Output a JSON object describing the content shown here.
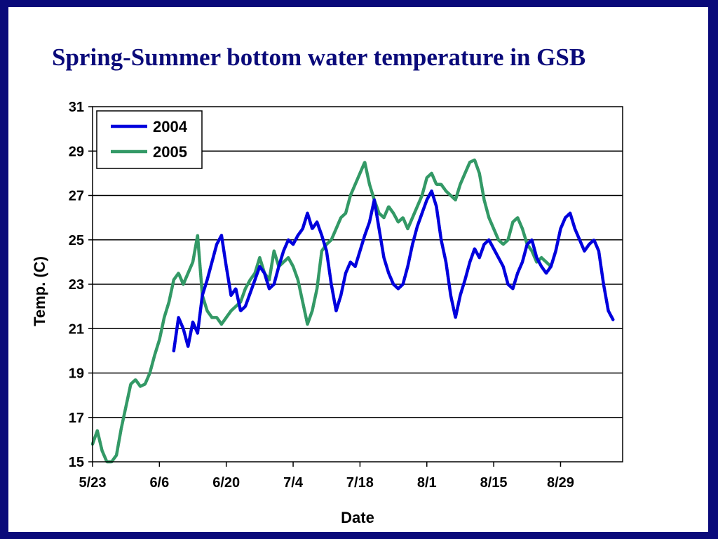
{
  "slide": {
    "title": "Spring-Summer bottom water temperature in GSB"
  },
  "chart_data": {
    "type": "line",
    "title": "Spring-Summer bottom water temperature in GSB",
    "xlabel": "Date",
    "ylabel": "Temp. (C)",
    "x_unit": "date (month/day)",
    "xlim": [
      "5/23",
      "9/11"
    ],
    "ylim": [
      15,
      31
    ],
    "yticks": [
      15,
      17,
      19,
      21,
      23,
      25,
      27,
      29,
      31
    ],
    "xticks": [
      "5/23",
      "6/6",
      "6/20",
      "7/4",
      "7/18",
      "8/1",
      "8/15",
      "8/29"
    ],
    "grid": "horizontal",
    "legend_position": "top-left",
    "series": [
      {
        "name": "2004",
        "color": "#0000dd",
        "x": [
          "6/9",
          "6/10",
          "6/11",
          "6/12",
          "6/13",
          "6/14",
          "6/15",
          "6/16",
          "6/17",
          "6/18",
          "6/19",
          "6/20",
          "6/21",
          "6/22",
          "6/23",
          "6/24",
          "6/25",
          "6/26",
          "6/27",
          "6/28",
          "6/29",
          "6/30",
          "7/1",
          "7/2",
          "7/3",
          "7/4",
          "7/5",
          "7/6",
          "7/7",
          "7/8",
          "7/9",
          "7/10",
          "7/11",
          "7/12",
          "7/13",
          "7/14",
          "7/15",
          "7/16",
          "7/17",
          "7/18",
          "7/19",
          "7/20",
          "7/21",
          "7/22",
          "7/23",
          "7/24",
          "7/25",
          "7/26",
          "7/27",
          "7/28",
          "7/29",
          "7/30",
          "7/31",
          "8/1",
          "8/2",
          "8/3",
          "8/4",
          "8/5",
          "8/6",
          "8/7",
          "8/8",
          "8/9",
          "8/10",
          "8/11",
          "8/12",
          "8/13",
          "8/14",
          "8/15",
          "8/16",
          "8/17",
          "8/18",
          "8/19",
          "8/20",
          "8/21",
          "8/22",
          "8/23",
          "8/24",
          "8/25",
          "8/26",
          "8/27",
          "8/28",
          "8/29",
          "8/30",
          "8/31",
          "9/1",
          "9/2",
          "9/3",
          "9/4",
          "9/5",
          "9/6",
          "9/7",
          "9/8",
          "9/9"
        ],
        "y": [
          20.0,
          21.5,
          21.0,
          20.2,
          21.3,
          20.8,
          22.5,
          23.2,
          24.0,
          24.8,
          25.2,
          23.8,
          22.5,
          22.8,
          21.8,
          22.0,
          22.6,
          23.2,
          23.8,
          23.5,
          22.8,
          23.0,
          23.8,
          24.5,
          25.0,
          24.8,
          25.2,
          25.5,
          26.2,
          25.5,
          25.8,
          25.2,
          24.5,
          23.0,
          21.8,
          22.5,
          23.5,
          24.0,
          23.8,
          24.5,
          25.2,
          25.8,
          26.8,
          25.5,
          24.2,
          23.5,
          23.0,
          22.8,
          23.0,
          23.8,
          24.8,
          25.6,
          26.2,
          26.8,
          27.2,
          26.5,
          25.0,
          24.0,
          22.5,
          21.5,
          22.5,
          23.2,
          24.0,
          24.6,
          24.2,
          24.8,
          25.0,
          24.6,
          24.2,
          23.8,
          23.0,
          22.8,
          23.5,
          24.0,
          24.8,
          25.0,
          24.2,
          23.8,
          23.5,
          23.8,
          24.5,
          25.5,
          26.0,
          26.2,
          25.5,
          25.0,
          24.5,
          24.8,
          25.0,
          24.5,
          23.0,
          21.8,
          21.4
        ]
      },
      {
        "name": "2005",
        "color": "#339966",
        "x": [
          "5/23",
          "5/24",
          "5/25",
          "5/26",
          "5/27",
          "5/28",
          "5/29",
          "5/30",
          "5/31",
          "6/1",
          "6/2",
          "6/3",
          "6/4",
          "6/5",
          "6/6",
          "6/7",
          "6/8",
          "6/9",
          "6/10",
          "6/11",
          "6/12",
          "6/13",
          "6/14",
          "6/15",
          "6/16",
          "6/17",
          "6/18",
          "6/19",
          "6/20",
          "6/21",
          "6/22",
          "6/23",
          "6/24",
          "6/25",
          "6/26",
          "6/27",
          "6/28",
          "6/29",
          "6/30",
          "7/1",
          "7/2",
          "7/3",
          "7/4",
          "7/5",
          "7/6",
          "7/7",
          "7/8",
          "7/9",
          "7/10",
          "7/11",
          "7/12",
          "7/13",
          "7/14",
          "7/15",
          "7/16",
          "7/17",
          "7/18",
          "7/19",
          "7/20",
          "7/21",
          "7/22",
          "7/23",
          "7/24",
          "7/25",
          "7/26",
          "7/27",
          "7/28",
          "7/29",
          "7/30",
          "7/31",
          "8/1",
          "8/2",
          "8/3",
          "8/4",
          "8/5",
          "8/6",
          "8/7",
          "8/8",
          "8/9",
          "8/10",
          "8/11",
          "8/12",
          "8/13",
          "8/14",
          "8/15",
          "8/16",
          "8/17",
          "8/18",
          "8/19",
          "8/20",
          "8/21",
          "8/22",
          "8/23",
          "8/24",
          "8/25",
          "8/26",
          "8/27"
        ],
        "y": [
          15.8,
          16.4,
          15.5,
          15.0,
          15.0,
          15.3,
          16.5,
          17.5,
          18.5,
          18.7,
          18.4,
          18.5,
          19.0,
          19.8,
          20.5,
          21.5,
          22.2,
          23.2,
          23.5,
          23.0,
          23.5,
          24.0,
          25.2,
          22.5,
          21.8,
          21.5,
          21.5,
          21.2,
          21.5,
          21.8,
          22.0,
          22.2,
          22.8,
          23.2,
          23.5,
          24.2,
          23.5,
          23.2,
          24.5,
          23.8,
          24.0,
          24.2,
          23.8,
          23.2,
          22.2,
          21.2,
          21.8,
          22.8,
          24.5,
          24.8,
          25.0,
          25.5,
          26.0,
          26.2,
          27.0,
          27.5,
          28.0,
          28.5,
          27.5,
          26.8,
          26.2,
          26.0,
          26.5,
          26.2,
          25.8,
          26.0,
          25.5,
          26.0,
          26.5,
          27.0,
          27.8,
          28.0,
          27.5,
          27.5,
          27.2,
          27.0,
          26.8,
          27.5,
          28.0,
          28.5,
          28.6,
          28.0,
          26.8,
          26.0,
          25.5,
          25.0,
          24.8,
          25.0,
          25.8,
          26.0,
          25.5,
          24.8,
          24.5,
          24.0,
          24.2,
          24.0,
          23.8
        ]
      }
    ]
  }
}
